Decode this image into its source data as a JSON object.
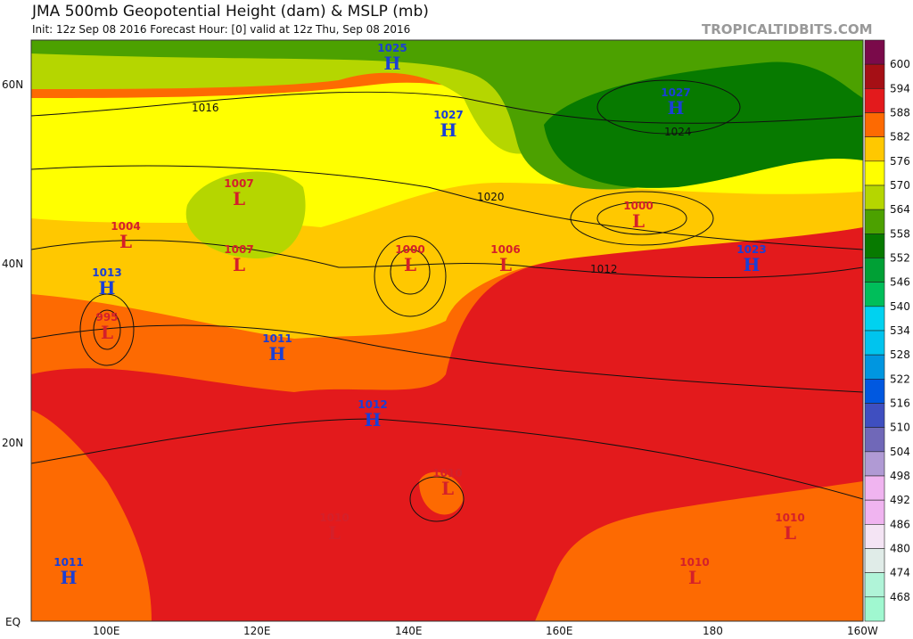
{
  "header": {
    "title": "JMA 500mb Geopotential Height (dam) & MSLP (mb)",
    "subtitle": "Init: 12z Sep 08 2016   Forecast Hour: [0]   valid at 12z Thu, Sep 08 2016",
    "brand": "TROPICALTIDBITS.COM"
  },
  "axes": {
    "lat_labels": [
      "60N",
      "40N",
      "20N",
      "EQ"
    ],
    "lon_labels": [
      "100E",
      "120E",
      "140E",
      "160E",
      "180",
      "160W"
    ]
  },
  "colorbar": {
    "labels": [
      "600",
      "594",
      "588",
      "582",
      "576",
      "570",
      "564",
      "558",
      "552",
      "546",
      "540",
      "534",
      "528",
      "522",
      "516",
      "510",
      "504",
      "498",
      "492",
      "486",
      "480",
      "474",
      "468"
    ],
    "colors": [
      "#7a0a4a",
      "#a50f15",
      "#e31a1c",
      "#fd6a02",
      "#ffc800",
      "#ffff00",
      "#b5d600",
      "#4ca100",
      "#077a00",
      "#00a035",
      "#00be5a",
      "#00d2f0",
      "#00c4ee",
      "#0096e0",
      "#0058e0",
      "#3f4fc0",
      "#7068b8",
      "#b09ad4",
      "#f0b4f0",
      "#f0b4f0",
      "#f4e4f4",
      "#e0ece8",
      "#b0f4d8",
      "#a0f8d0"
    ]
  },
  "pressure_centers": [
    {
      "type": "H",
      "value": "1025"
    },
    {
      "type": "H",
      "value": "1027"
    },
    {
      "type": "H",
      "value": "1027"
    },
    {
      "type": "L",
      "value": "1007"
    },
    {
      "type": "L",
      "value": "1004"
    },
    {
      "type": "L",
      "value": "1007"
    },
    {
      "type": "H",
      "value": "1013"
    },
    {
      "type": "L",
      "value": "995"
    },
    {
      "type": "L",
      "value": "1000"
    },
    {
      "type": "L",
      "value": "1006"
    },
    {
      "type": "L",
      "value": "1000"
    },
    {
      "type": "H",
      "value": "1023"
    },
    {
      "type": "H",
      "value": "1011"
    },
    {
      "type": "H",
      "value": "1012"
    },
    {
      "type": "L",
      "value": "1010"
    },
    {
      "type": "L",
      "value": "1010"
    },
    {
      "type": "L",
      "value": "1010"
    },
    {
      "type": "L",
      "value": "1010"
    },
    {
      "type": "H",
      "value": "1011"
    }
  ],
  "isobar_labels": [
    "1016",
    "1024",
    "1020",
    "1012"
  ],
  "colors": {
    "high": "#1a3fd6",
    "low": "#d4202a"
  }
}
